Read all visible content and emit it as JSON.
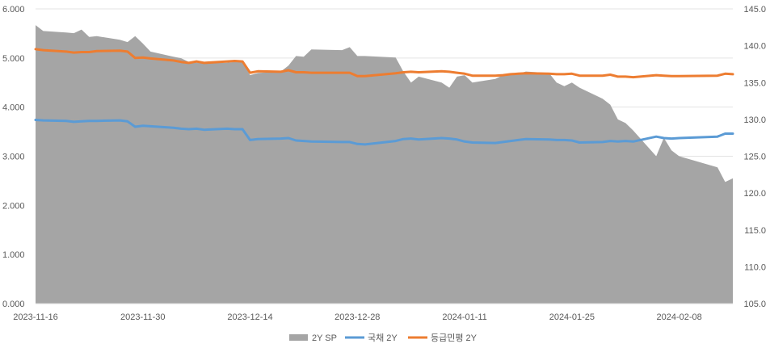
{
  "chart_data": {
    "type": "line",
    "title": "",
    "grid": true,
    "legend_position": "bottom",
    "x_ticks": [
      "2023-11-16",
      "2023-11-30",
      "2023-12-14",
      "2023-12-28",
      "2024-01-11",
      "2024-01-25",
      "2024-02-08"
    ],
    "x_range": [
      "2023-11-16",
      "2024-02-15"
    ],
    "y_left": {
      "min": 0,
      "max": 6,
      "ticks": [
        "0.000",
        "1.000",
        "2.000",
        "3.000",
        "4.000",
        "5.000",
        "6.000"
      ]
    },
    "y_right": {
      "min": 105,
      "max": 145,
      "ticks": [
        "105.0",
        "110.0",
        "115.0",
        "120.0",
        "125.0",
        "130.0",
        "135.0",
        "140.0",
        "145.0"
      ]
    },
    "series": [
      {
        "name": "2Y SP",
        "type": "area",
        "axis": "right",
        "color": "#a5a5a5",
        "points": [
          [
            "2023-11-16",
            142.8
          ],
          [
            "2023-11-17",
            142.0
          ],
          [
            "2023-11-20",
            141.8
          ],
          [
            "2023-11-21",
            141.7
          ],
          [
            "2023-11-22",
            142.2
          ],
          [
            "2023-11-23",
            141.2
          ],
          [
            "2023-11-24",
            141.3
          ],
          [
            "2023-11-27",
            140.8
          ],
          [
            "2023-11-28",
            140.5
          ],
          [
            "2023-11-29",
            141.3
          ],
          [
            "2023-11-30",
            140.3
          ],
          [
            "2023-12-01",
            139.2
          ],
          [
            "2023-12-04",
            138.5
          ],
          [
            "2023-12-05",
            138.3
          ],
          [
            "2023-12-06",
            137.8
          ],
          [
            "2023-12-07",
            137.7
          ],
          [
            "2023-12-08",
            137.6
          ],
          [
            "2023-12-11",
            137.7
          ],
          [
            "2023-12-12",
            137.8
          ],
          [
            "2023-12-13",
            137.9
          ],
          [
            "2023-12-14",
            136.0
          ],
          [
            "2023-12-15",
            136.3
          ],
          [
            "2023-12-18",
            136.5
          ],
          [
            "2023-12-19",
            137.3
          ],
          [
            "2023-12-20",
            138.6
          ],
          [
            "2023-12-21",
            138.5
          ],
          [
            "2023-12-22",
            139.5
          ],
          [
            "2023-12-26",
            139.4
          ],
          [
            "2023-12-27",
            139.8
          ],
          [
            "2023-12-28",
            138.6
          ],
          [
            "2023-12-29",
            138.6
          ],
          [
            "2024-01-02",
            138.4
          ],
          [
            "2024-01-03",
            136.5
          ],
          [
            "2024-01-04",
            135.0
          ],
          [
            "2024-01-05",
            135.8
          ],
          [
            "2024-01-08",
            135.0
          ],
          [
            "2024-01-09",
            134.3
          ],
          [
            "2024-01-10",
            135.8
          ],
          [
            "2024-01-11",
            136.0
          ],
          [
            "2024-01-12",
            135.0
          ],
          [
            "2024-01-15",
            135.5
          ],
          [
            "2024-01-16",
            136.0
          ],
          [
            "2024-01-17",
            136.0
          ],
          [
            "2024-01-18",
            136.2
          ],
          [
            "2024-01-19",
            136.5
          ],
          [
            "2024-01-22",
            136.3
          ],
          [
            "2024-01-23",
            135.0
          ],
          [
            "2024-01-24",
            134.5
          ],
          [
            "2024-01-25",
            135.0
          ],
          [
            "2024-01-26",
            134.3
          ],
          [
            "2024-01-29",
            132.8
          ],
          [
            "2024-01-30",
            132.0
          ],
          [
            "2024-01-31",
            130.0
          ],
          [
            "2024-02-01",
            129.5
          ],
          [
            "2024-02-02",
            128.5
          ],
          [
            "2024-02-05",
            125.0
          ],
          [
            "2024-02-06",
            127.5
          ],
          [
            "2024-02-07",
            125.8
          ],
          [
            "2024-02-08",
            125.0
          ],
          [
            "2024-02-13",
            123.5
          ],
          [
            "2024-02-14",
            121.5
          ],
          [
            "2024-02-15",
            122.0
          ]
        ]
      },
      {
        "name": "국채 2Y",
        "type": "line",
        "axis": "left",
        "color": "#5b9bd5",
        "points": [
          [
            "2023-11-16",
            3.74
          ],
          [
            "2023-11-17",
            3.73
          ],
          [
            "2023-11-20",
            3.72
          ],
          [
            "2023-11-21",
            3.7
          ],
          [
            "2023-11-22",
            3.71
          ],
          [
            "2023-11-23",
            3.72
          ],
          [
            "2023-11-24",
            3.72
          ],
          [
            "2023-11-27",
            3.73
          ],
          [
            "2023-11-28",
            3.71
          ],
          [
            "2023-11-29",
            3.6
          ],
          [
            "2023-11-30",
            3.62
          ],
          [
            "2023-12-01",
            3.61
          ],
          [
            "2023-12-04",
            3.58
          ],
          [
            "2023-12-05",
            3.56
          ],
          [
            "2023-12-06",
            3.55
          ],
          [
            "2023-12-07",
            3.56
          ],
          [
            "2023-12-08",
            3.54
          ],
          [
            "2023-12-11",
            3.56
          ],
          [
            "2023-12-12",
            3.55
          ],
          [
            "2023-12-13",
            3.55
          ],
          [
            "2023-12-14",
            3.33
          ],
          [
            "2023-12-15",
            3.35
          ],
          [
            "2023-12-18",
            3.36
          ],
          [
            "2023-12-19",
            3.37
          ],
          [
            "2023-12-20",
            3.32
          ],
          [
            "2023-12-21",
            3.31
          ],
          [
            "2023-12-22",
            3.3
          ],
          [
            "2023-12-26",
            3.29
          ],
          [
            "2023-12-27",
            3.29
          ],
          [
            "2023-12-28",
            3.25
          ],
          [
            "2023-12-29",
            3.24
          ],
          [
            "2024-01-02",
            3.31
          ],
          [
            "2024-01-03",
            3.35
          ],
          [
            "2024-01-04",
            3.36
          ],
          [
            "2024-01-05",
            3.34
          ],
          [
            "2024-01-08",
            3.37
          ],
          [
            "2024-01-09",
            3.36
          ],
          [
            "2024-01-10",
            3.34
          ],
          [
            "2024-01-11",
            3.3
          ],
          [
            "2024-01-12",
            3.28
          ],
          [
            "2024-01-15",
            3.27
          ],
          [
            "2024-01-16",
            3.29
          ],
          [
            "2024-01-17",
            3.31
          ],
          [
            "2024-01-18",
            3.33
          ],
          [
            "2024-01-19",
            3.35
          ],
          [
            "2024-01-22",
            3.34
          ],
          [
            "2024-01-23",
            3.33
          ],
          [
            "2024-01-24",
            3.33
          ],
          [
            "2024-01-25",
            3.32
          ],
          [
            "2024-01-26",
            3.28
          ],
          [
            "2024-01-29",
            3.29
          ],
          [
            "2024-01-30",
            3.31
          ],
          [
            "2024-01-31",
            3.3
          ],
          [
            "2024-02-01",
            3.31
          ],
          [
            "2024-02-02",
            3.3
          ],
          [
            "2024-02-05",
            3.4
          ],
          [
            "2024-02-06",
            3.37
          ],
          [
            "2024-02-07",
            3.36
          ],
          [
            "2024-02-08",
            3.37
          ],
          [
            "2024-02-13",
            3.4
          ],
          [
            "2024-02-14",
            3.46
          ],
          [
            "2024-02-15",
            3.46
          ]
        ]
      },
      {
        "name": "등급민평 2Y",
        "type": "line",
        "axis": "left",
        "color": "#ed7d31",
        "points": [
          [
            "2023-11-16",
            5.18
          ],
          [
            "2023-11-17",
            5.16
          ],
          [
            "2023-11-20",
            5.13
          ],
          [
            "2023-11-21",
            5.11
          ],
          [
            "2023-11-22",
            5.12
          ],
          [
            "2023-11-23",
            5.12
          ],
          [
            "2023-11-24",
            5.14
          ],
          [
            "2023-11-27",
            5.15
          ],
          [
            "2023-11-28",
            5.13
          ],
          [
            "2023-11-29",
            5.0
          ],
          [
            "2023-11-30",
            5.01
          ],
          [
            "2023-12-01",
            4.99
          ],
          [
            "2023-12-04",
            4.95
          ],
          [
            "2023-12-05",
            4.92
          ],
          [
            "2023-12-06",
            4.9
          ],
          [
            "2023-12-07",
            4.93
          ],
          [
            "2023-12-08",
            4.9
          ],
          [
            "2023-12-11",
            4.93
          ],
          [
            "2023-12-12",
            4.94
          ],
          [
            "2023-12-13",
            4.93
          ],
          [
            "2023-12-14",
            4.7
          ],
          [
            "2023-12-15",
            4.73
          ],
          [
            "2023-12-18",
            4.72
          ],
          [
            "2023-12-19",
            4.75
          ],
          [
            "2023-12-20",
            4.71
          ],
          [
            "2023-12-21",
            4.71
          ],
          [
            "2023-12-22",
            4.7
          ],
          [
            "2023-12-26",
            4.7
          ],
          [
            "2023-12-27",
            4.7
          ],
          [
            "2023-12-28",
            4.63
          ],
          [
            "2023-12-29",
            4.63
          ],
          [
            "2024-01-02",
            4.69
          ],
          [
            "2024-01-03",
            4.71
          ],
          [
            "2024-01-04",
            4.72
          ],
          [
            "2024-01-05",
            4.71
          ],
          [
            "2024-01-08",
            4.73
          ],
          [
            "2024-01-09",
            4.72
          ],
          [
            "2024-01-10",
            4.7
          ],
          [
            "2024-01-11",
            4.68
          ],
          [
            "2024-01-12",
            4.64
          ],
          [
            "2024-01-15",
            4.64
          ],
          [
            "2024-01-16",
            4.65
          ],
          [
            "2024-01-17",
            4.67
          ],
          [
            "2024-01-18",
            4.68
          ],
          [
            "2024-01-19",
            4.69
          ],
          [
            "2024-01-22",
            4.68
          ],
          [
            "2024-01-23",
            4.67
          ],
          [
            "2024-01-24",
            4.67
          ],
          [
            "2024-01-25",
            4.68
          ],
          [
            "2024-01-26",
            4.64
          ],
          [
            "2024-01-29",
            4.64
          ],
          [
            "2024-01-30",
            4.66
          ],
          [
            "2024-01-31",
            4.62
          ],
          [
            "2024-02-01",
            4.62
          ],
          [
            "2024-02-02",
            4.61
          ],
          [
            "2024-02-05",
            4.65
          ],
          [
            "2024-02-06",
            4.64
          ],
          [
            "2024-02-07",
            4.63
          ],
          [
            "2024-02-08",
            4.63
          ],
          [
            "2024-02-13",
            4.64
          ],
          [
            "2024-02-14",
            4.68
          ],
          [
            "2024-02-15",
            4.67
          ]
        ]
      }
    ]
  }
}
